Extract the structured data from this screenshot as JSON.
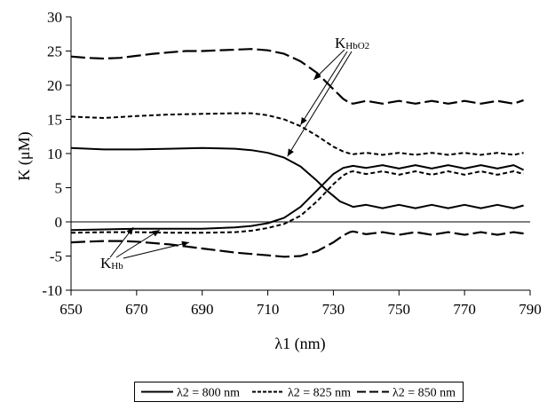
{
  "chart_data": {
    "type": "line",
    "title": "",
    "xlabel": "λ1 (nm)",
    "ylabel": "K (μM)",
    "xlim": [
      650,
      790
    ],
    "ylim": [
      -10,
      30
    ],
    "xticks": [
      650,
      670,
      690,
      710,
      730,
      750,
      770,
      790
    ],
    "yticks": [
      -10,
      -5,
      0,
      5,
      10,
      15,
      20,
      25,
      30
    ],
    "grid": false,
    "legend_position": "bottom",
    "colors": {
      "series": "#000000",
      "axis": "#000000",
      "background": "#ffffff"
    },
    "annotations": [
      {
        "label": "K",
        "subscript": "HbO2",
        "text": "KHbO2"
      },
      {
        "label": "K",
        "subscript": "Hb",
        "text": "KHb"
      }
    ],
    "series": [
      {
        "name": "λ2 = 800 nm",
        "group": "KHbO2",
        "dash": "solid",
        "x": [
          650,
          660,
          670,
          680,
          690,
          700,
          705,
          710,
          715,
          720,
          725,
          728,
          730,
          732,
          735,
          736,
          740,
          745,
          750,
          755,
          760,
          765,
          770,
          775,
          780,
          785,
          788
        ],
        "y": [
          10.8,
          10.6,
          10.6,
          10.7,
          10.8,
          10.7,
          10.5,
          10.1,
          9.4,
          8.1,
          6.0,
          4.6,
          3.8,
          3.0,
          2.4,
          2.2,
          2.5,
          2.0,
          2.5,
          2.0,
          2.5,
          2.0,
          2.5,
          2.0,
          2.5,
          2.0,
          2.4
        ]
      },
      {
        "name": "λ2 = 825 nm",
        "group": "KHbO2",
        "dash": "short-dash",
        "x": [
          650,
          660,
          670,
          680,
          690,
          700,
          705,
          710,
          715,
          720,
          725,
          730,
          733,
          735,
          736,
          740,
          745,
          750,
          755,
          760,
          765,
          770,
          775,
          780,
          785,
          788
        ],
        "y": [
          15.4,
          15.2,
          15.5,
          15.7,
          15.8,
          15.9,
          15.9,
          15.6,
          15.0,
          14.0,
          12.6,
          11.0,
          10.3,
          10.0,
          9.9,
          10.1,
          9.8,
          10.1,
          9.8,
          10.1,
          9.8,
          10.1,
          9.8,
          10.1,
          9.8,
          10.1
        ]
      },
      {
        "name": "λ2 = 850 nm",
        "group": "KHbO2",
        "dash": "long-dash",
        "x": [
          650,
          655,
          660,
          665,
          670,
          675,
          680,
          685,
          690,
          695,
          700,
          705,
          710,
          715,
          720,
          725,
          730,
          733,
          735,
          736,
          740,
          745,
          750,
          755,
          760,
          765,
          770,
          775,
          780,
          785,
          788
        ],
        "y": [
          24.2,
          24.0,
          23.9,
          24.0,
          24.3,
          24.6,
          24.8,
          25.0,
          25.0,
          25.1,
          25.2,
          25.3,
          25.1,
          24.6,
          23.5,
          21.8,
          19.4,
          18.0,
          17.4,
          17.3,
          17.7,
          17.3,
          17.7,
          17.3,
          17.7,
          17.3,
          17.7,
          17.3,
          17.7,
          17.3,
          17.8
        ]
      },
      {
        "name": "λ2 = 800 nm",
        "group": "KHb",
        "dash": "solid",
        "x": [
          650,
          660,
          670,
          680,
          690,
          700,
          705,
          710,
          715,
          720,
          725,
          730,
          733,
          735,
          736,
          740,
          745,
          750,
          755,
          760,
          765,
          770,
          775,
          780,
          785,
          788
        ],
        "y": [
          -1.2,
          -1.1,
          -1.0,
          -1.0,
          -1.0,
          -0.8,
          -0.6,
          -0.2,
          0.6,
          2.2,
          4.6,
          7.0,
          7.9,
          8.1,
          8.2,
          7.9,
          8.3,
          7.8,
          8.3,
          7.8,
          8.3,
          7.8,
          8.3,
          7.8,
          8.3,
          7.6
        ]
      },
      {
        "name": "λ2 = 825 nm",
        "group": "KHb",
        "dash": "short-dash",
        "x": [
          650,
          660,
          670,
          680,
          690,
          700,
          705,
          710,
          715,
          720,
          725,
          730,
          733,
          735,
          736,
          740,
          745,
          750,
          755,
          760,
          765,
          770,
          775,
          780,
          785,
          788
        ],
        "y": [
          -1.6,
          -1.5,
          -1.5,
          -1.6,
          -1.6,
          -1.5,
          -1.3,
          -0.9,
          -0.3,
          0.9,
          3.0,
          5.5,
          6.8,
          7.3,
          7.4,
          7.0,
          7.4,
          6.9,
          7.4,
          6.9,
          7.4,
          6.9,
          7.4,
          6.9,
          7.4,
          7.0
        ]
      },
      {
        "name": "λ2 = 850 nm",
        "group": "KHb",
        "dash": "long-dash",
        "x": [
          650,
          655,
          660,
          665,
          670,
          675,
          680,
          685,
          690,
          695,
          700,
          705,
          710,
          715,
          720,
          725,
          730,
          733,
          735,
          736,
          740,
          745,
          750,
          755,
          760,
          765,
          770,
          775,
          780,
          785,
          788
        ],
        "y": [
          -3.0,
          -2.9,
          -2.8,
          -2.8,
          -2.9,
          -3.1,
          -3.3,
          -3.6,
          -3.9,
          -4.2,
          -4.5,
          -4.7,
          -4.9,
          -5.1,
          -5.0,
          -4.3,
          -3.0,
          -2.0,
          -1.5,
          -1.4,
          -1.8,
          -1.5,
          -1.9,
          -1.5,
          -1.9,
          -1.5,
          -1.9,
          -1.5,
          -1.9,
          -1.5,
          -1.7
        ]
      }
    ],
    "legend": [
      {
        "label": "λ2 = 800 nm",
        "dash": "solid"
      },
      {
        "label": "λ2 = 825 nm",
        "dash": "short-dash"
      },
      {
        "label": "λ2 = 850 nm",
        "dash": "long-dash"
      }
    ]
  }
}
